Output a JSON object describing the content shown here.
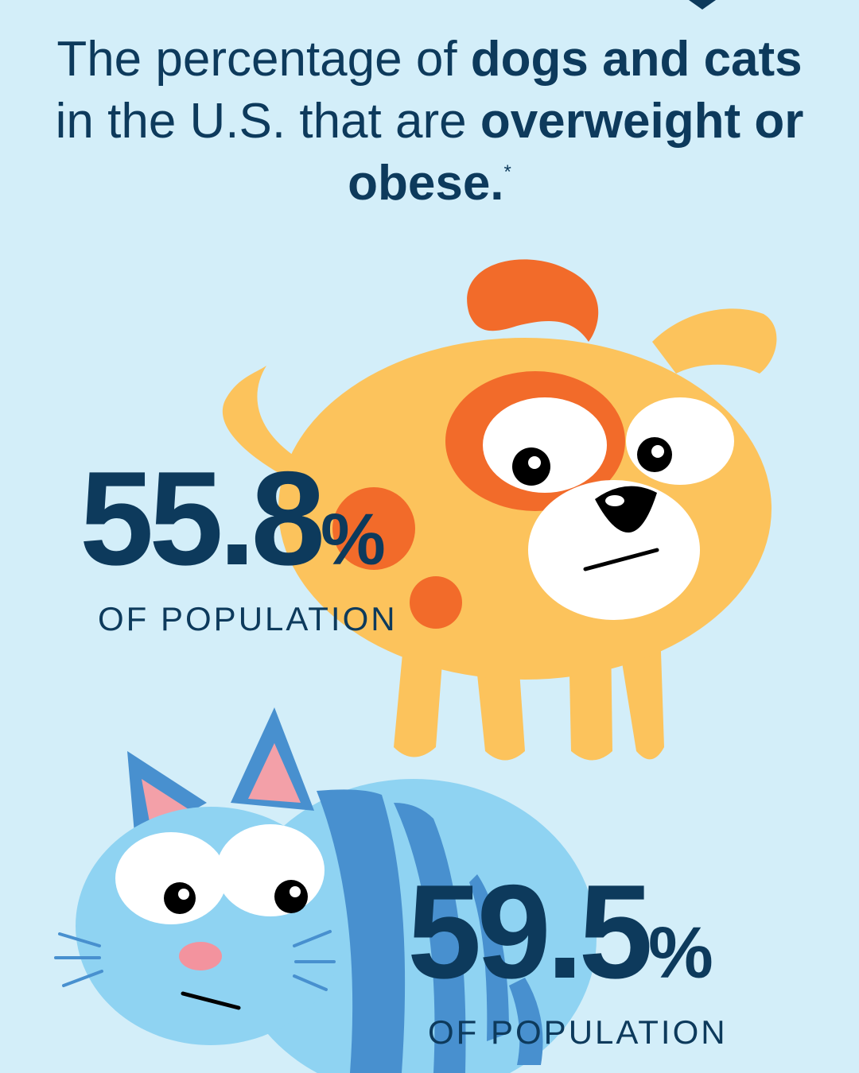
{
  "headline": {
    "part1": "The percentage of ",
    "bold1": "dogs and cats",
    "part2": " in the U.S. that are ",
    "bold2": "overweight or obese.",
    "mark": "*"
  },
  "dog_stat": {
    "value": "55.8",
    "unit": "%",
    "label": "OF POPULATION"
  },
  "cat_stat": {
    "value": "59.5",
    "unit": "%",
    "label": "OF POPULATION"
  },
  "colors": {
    "background": "#d3eef9",
    "text": "#0d3a5c",
    "dog_body": "#fcc35c",
    "dog_accent": "#f26b2a",
    "cat_body": "#8fd3f2",
    "cat_stripe": "#4890cf",
    "cat_nose": "#f3939e"
  },
  "icons": [
    "dog-illustration",
    "cat-illustration"
  ]
}
